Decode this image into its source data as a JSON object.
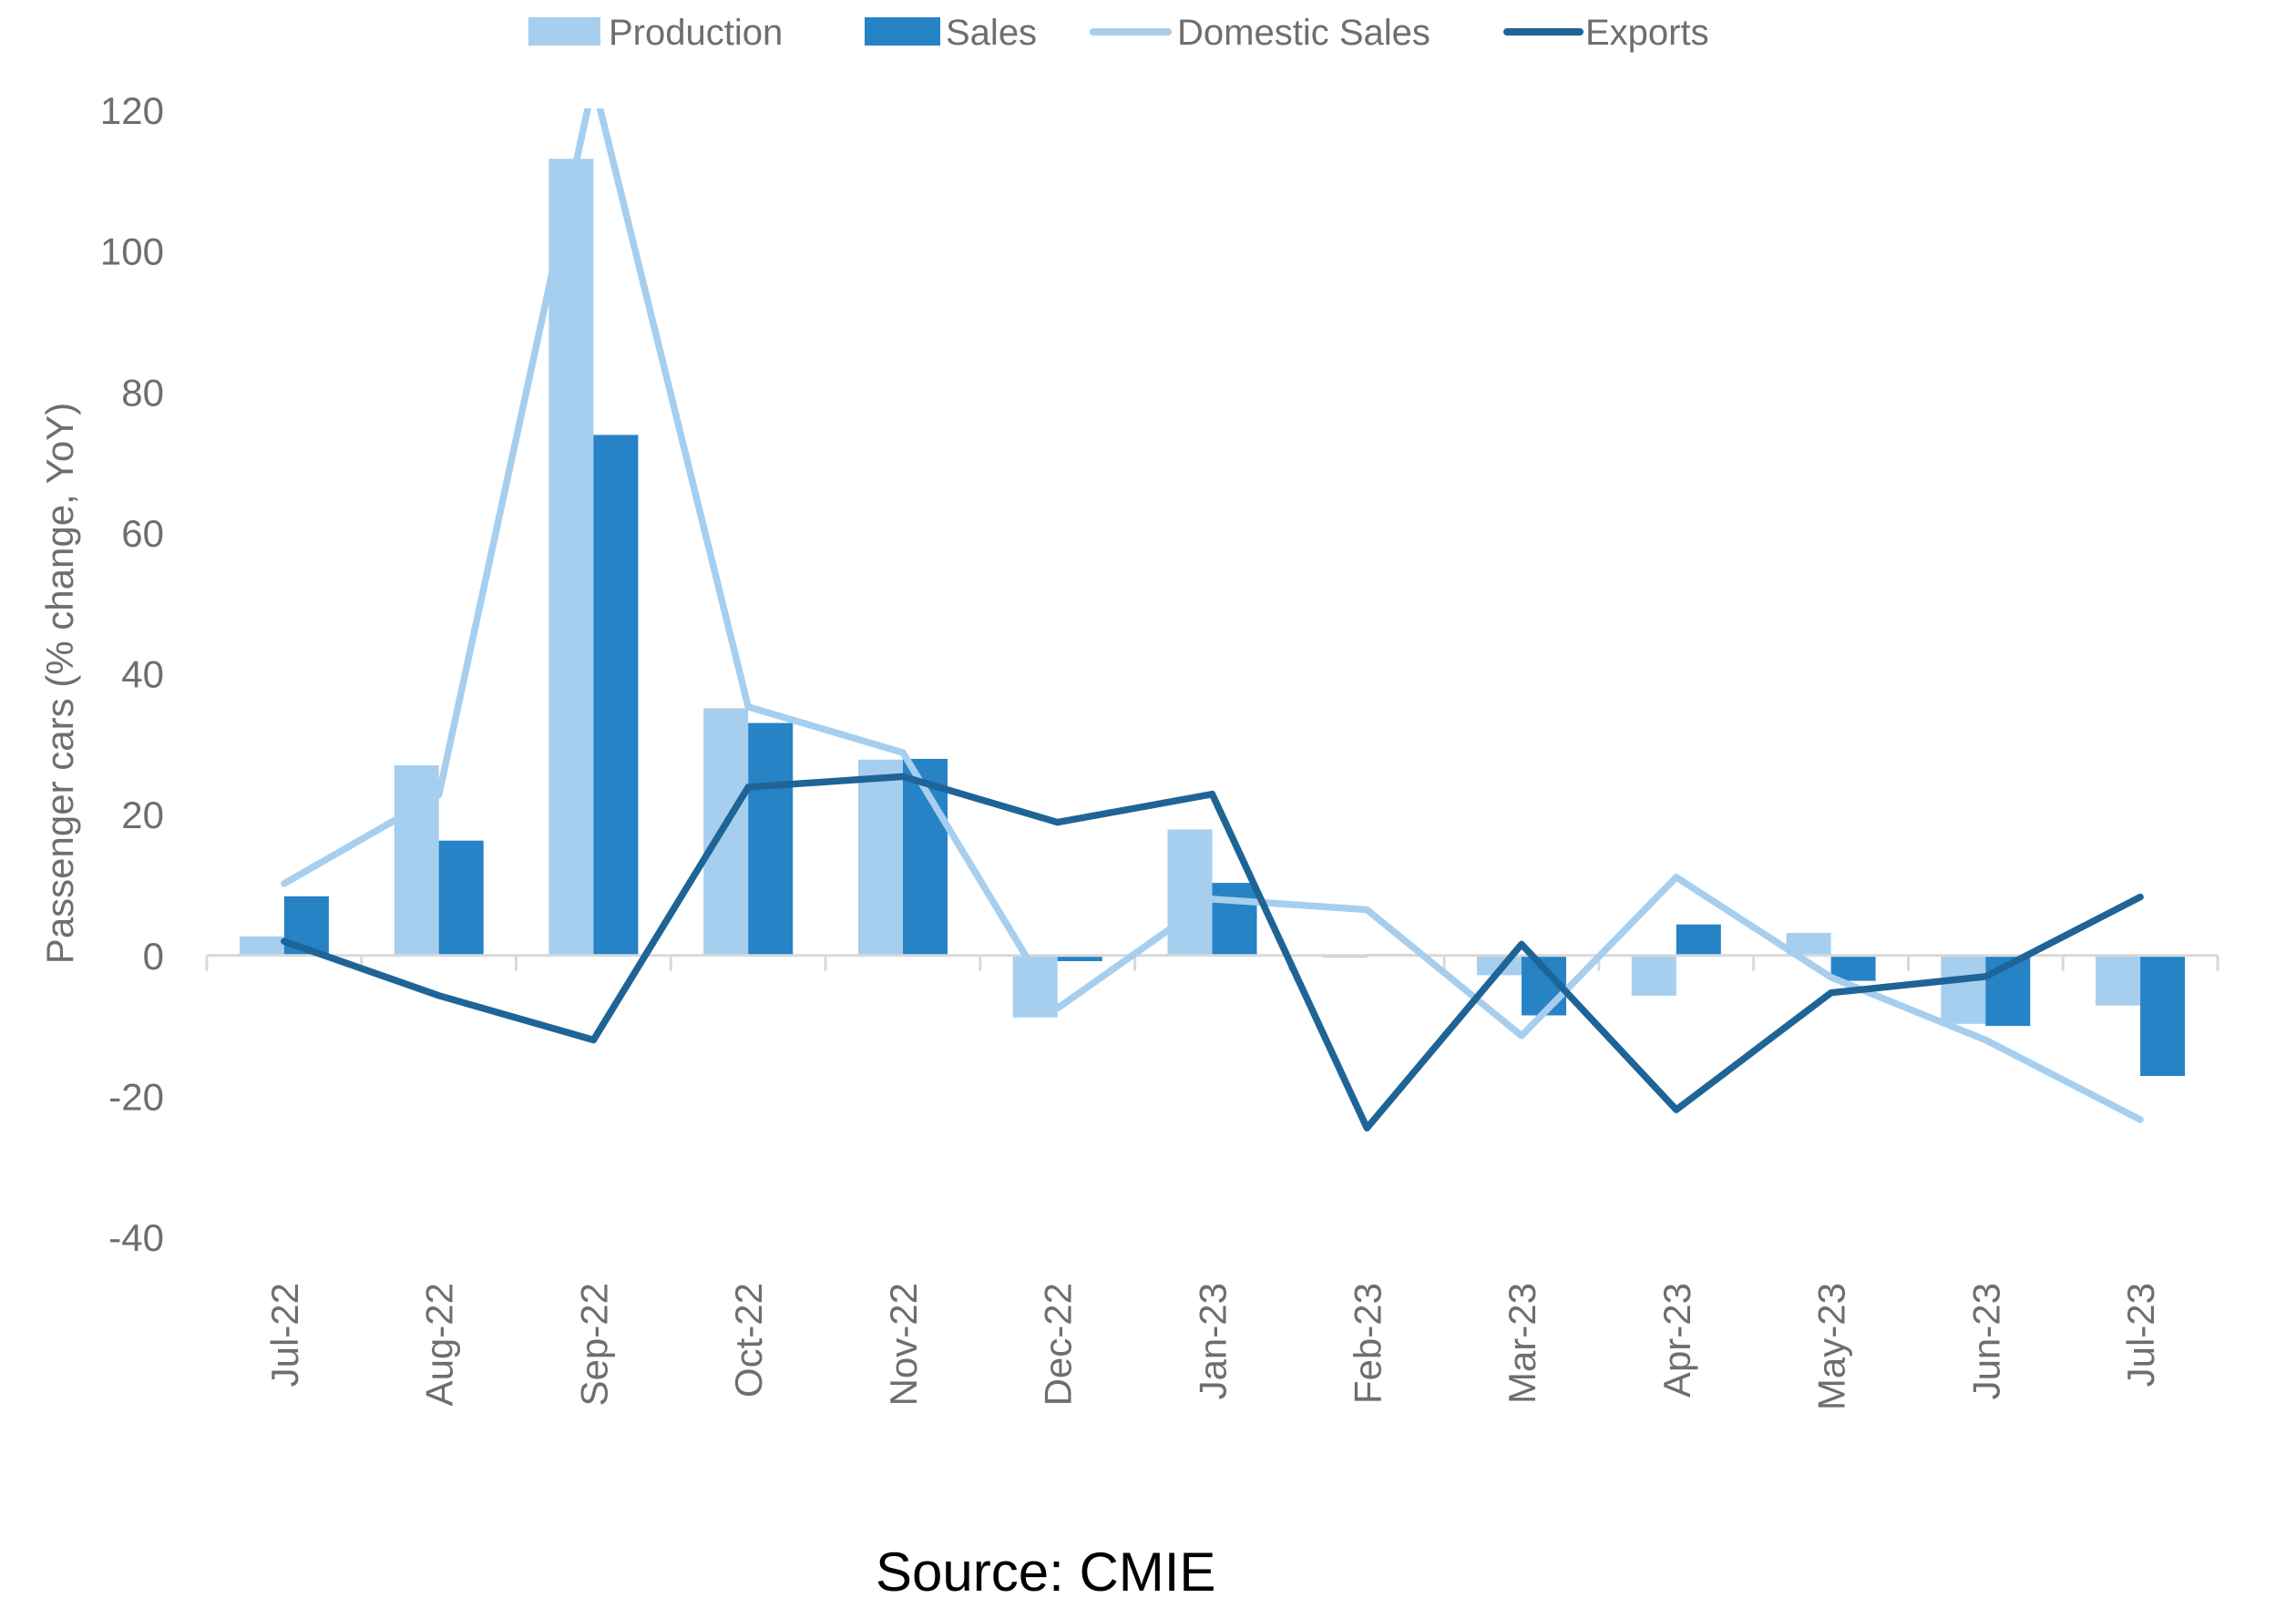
{
  "chart_data": {
    "type": "bar",
    "title": "",
    "xlabel": "",
    "ylabel": "Passenger cars (% change, YoY)",
    "ylim": [
      -40,
      120
    ],
    "yticks": [
      -40,
      -20,
      0,
      20,
      40,
      60,
      80,
      100,
      120
    ],
    "grid": false,
    "legend_position": "top",
    "categories": [
      "Jul-22",
      "Aug-22",
      "Sep-22",
      "Oct-22",
      "Nov-22",
      "Dec-22",
      "Jan-23",
      "Feb-23",
      "Mar-23",
      "Apr-23",
      "May-23",
      "Jun-23",
      "Jul-23"
    ],
    "series": [
      {
        "name": "Production",
        "type": "bar",
        "color": "#a6ceee",
        "values": [
          2.7,
          27.0,
          113.1,
          35.1,
          27.8,
          -8.8,
          17.9,
          -0.3,
          -2.8,
          -5.7,
          3.2,
          -9.7,
          -7.1
        ]
      },
      {
        "name": "Sales",
        "type": "bar",
        "color": "#2683c6",
        "values": [
          8.4,
          16.3,
          73.9,
          33.0,
          27.9,
          -0.8,
          10.3,
          0.2,
          -8.5,
          4.4,
          -3.6,
          -10.0,
          -17.1
        ]
      },
      {
        "name": "Domestic Sales",
        "type": "line",
        "color": "#a6ceee",
        "values": [
          10.2,
          22.8,
          124.0,
          35.3,
          28.8,
          -7.5,
          8.0,
          6.5,
          -11.4,
          11.1,
          -3.1,
          -12.0,
          -23.3
        ]
      },
      {
        "name": "Exports",
        "type": "line",
        "color": "#1f6496",
        "values": [
          2.0,
          -5.7,
          -12.0,
          23.9,
          25.4,
          18.9,
          22.9,
          -24.5,
          1.6,
          -21.9,
          -5.3,
          -3.0,
          8.3
        ]
      }
    ],
    "source": "Source:  CMIE"
  }
}
